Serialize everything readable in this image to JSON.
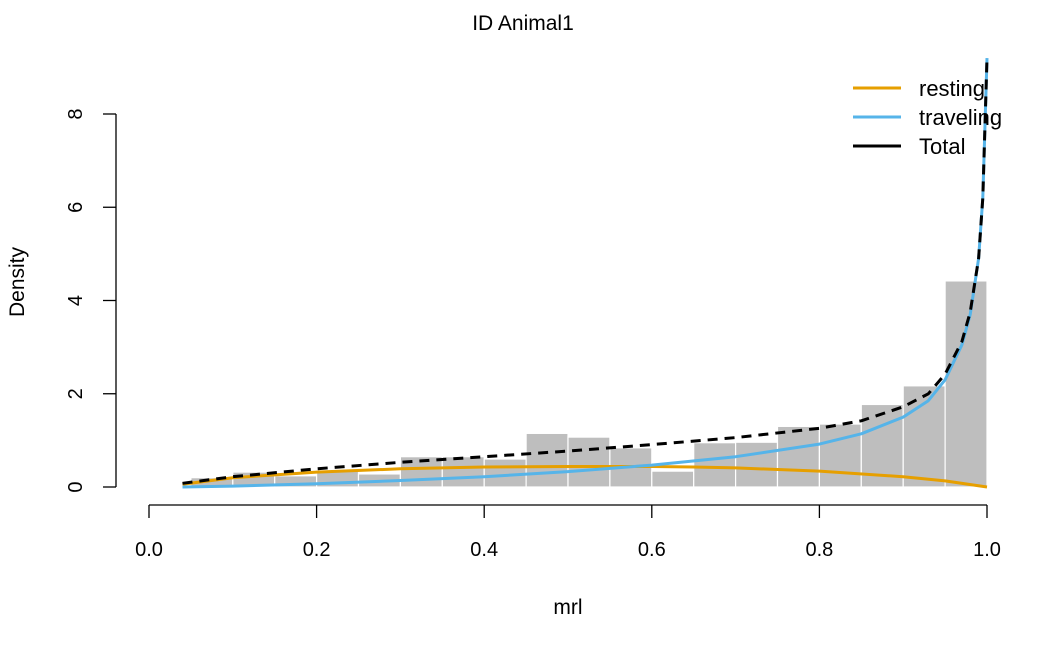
{
  "chart_data": {
    "type": "histogram_with_density",
    "title": "ID Animal1",
    "xlabel": "mrl",
    "ylabel": "Density",
    "xlim": [
      0.0,
      1.0
    ],
    "ylim": [
      0,
      8
    ],
    "x_ticks": [
      "0.0",
      "0.2",
      "0.4",
      "0.6",
      "0.8",
      "1.0"
    ],
    "y_ticks": [
      "0",
      "2",
      "4",
      "6",
      "8"
    ],
    "grid": false,
    "legend_position": "top-right",
    "histogram": {
      "color": "#bebebe",
      "bin_edges": [
        0.0,
        0.05,
        0.1,
        0.15,
        0.2,
        0.25,
        0.3,
        0.35,
        0.4,
        0.45,
        0.5,
        0.55,
        0.6,
        0.65,
        0.7,
        0.75,
        0.8,
        0.85,
        0.9,
        0.95,
        1.0
      ],
      "densities": [
        0.02,
        0.2,
        0.32,
        0.24,
        0.35,
        0.28,
        0.65,
        0.65,
        0.6,
        1.15,
        1.07,
        0.84,
        0.34,
        0.95,
        0.96,
        1.3,
        1.35,
        1.77,
        2.17,
        4.42
      ]
    },
    "series": [
      {
        "name": "resting",
        "color": "#E69F00",
        "style": "solid",
        "x": [
          0.04,
          0.1,
          0.2,
          0.3,
          0.4,
          0.5,
          0.6,
          0.65,
          0.7,
          0.8,
          0.9,
          0.95,
          1.0
        ],
        "values": [
          0.06,
          0.2,
          0.32,
          0.39,
          0.43,
          0.44,
          0.44,
          0.43,
          0.41,
          0.34,
          0.22,
          0.13,
          0.0
        ]
      },
      {
        "name": "traveling",
        "color": "#56B4E9",
        "style": "solid",
        "x": [
          0.04,
          0.1,
          0.2,
          0.3,
          0.4,
          0.5,
          0.6,
          0.7,
          0.8,
          0.85,
          0.9,
          0.93,
          0.95,
          0.97,
          0.98,
          0.99,
          0.995,
          1.0
        ],
        "values": [
          0.0,
          0.02,
          0.07,
          0.14,
          0.22,
          0.33,
          0.47,
          0.65,
          0.92,
          1.14,
          1.5,
          1.85,
          2.3,
          3.05,
          3.7,
          4.9,
          6.2,
          9.2
        ]
      },
      {
        "name": "Total",
        "color": "#000000",
        "style": "dashed",
        "x": [
          0.04,
          0.1,
          0.2,
          0.3,
          0.4,
          0.5,
          0.6,
          0.7,
          0.8,
          0.85,
          0.9,
          0.93,
          0.95,
          0.97,
          0.98,
          0.99,
          0.995,
          1.0
        ],
        "values": [
          0.08,
          0.22,
          0.39,
          0.53,
          0.65,
          0.77,
          0.91,
          1.06,
          1.26,
          1.42,
          1.72,
          2.0,
          2.42,
          3.12,
          3.75,
          4.9,
          6.2,
          9.2
        ]
      }
    ]
  }
}
